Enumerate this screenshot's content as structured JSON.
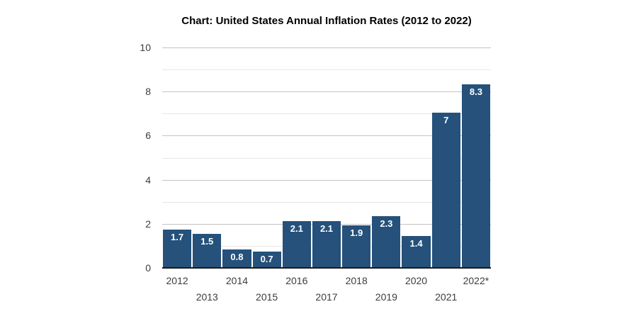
{
  "chart_data": {
    "type": "bar",
    "title": "Chart: United States Annual Inflation Rates (2012 to 2022)",
    "categories": [
      "2012",
      "2013",
      "2014",
      "2015",
      "2016",
      "2017",
      "2018",
      "2019",
      "2020",
      "2021",
      "2022*"
    ],
    "values": [
      1.7,
      1.5,
      0.8,
      0.7,
      2.1,
      2.1,
      1.9,
      2.3,
      1.4,
      7,
      8.3
    ],
    "bar_labels": [
      "1.7",
      "1.5",
      "0.8",
      "0.7",
      "2.1",
      "2.1",
      "1.9",
      "2.3",
      "1.4",
      "7",
      "8.3"
    ],
    "xlabel": "",
    "ylabel": "",
    "ylim": [
      0,
      10
    ],
    "major_ticks": [
      0,
      2,
      4,
      6,
      8,
      10
    ],
    "minor_ticks": [
      1,
      3,
      5,
      7,
      9
    ],
    "grid": "horizontal",
    "legend": "none",
    "x_tick_style": "staggered-two-rows",
    "colors": {
      "bar_fill": "#25517b",
      "bar_label_text": "#ffffff",
      "title_text": "#000000",
      "tick_text": "#3c3c3c",
      "major_gridline": "#c3c3c3",
      "minor_gridline": "#e7e7e7",
      "axis_line": "#1a1a1a",
      "background": "#ffffff"
    }
  }
}
